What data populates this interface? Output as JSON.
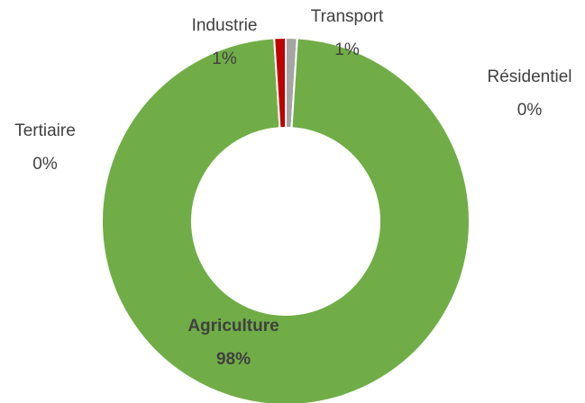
{
  "chart_data": {
    "type": "donut",
    "categories": [
      "Transport",
      "Résidentiel",
      "Agriculture",
      "Tertiaire",
      "Industrie"
    ],
    "values": [
      1,
      0,
      98,
      0,
      1
    ],
    "value_labels": [
      "1%",
      "0%",
      "98%",
      "0%",
      "1%"
    ],
    "colors": [
      "#a5a5a5",
      "#ffc000",
      "#70ad47",
      "#4472c4",
      "#c00000"
    ]
  }
}
